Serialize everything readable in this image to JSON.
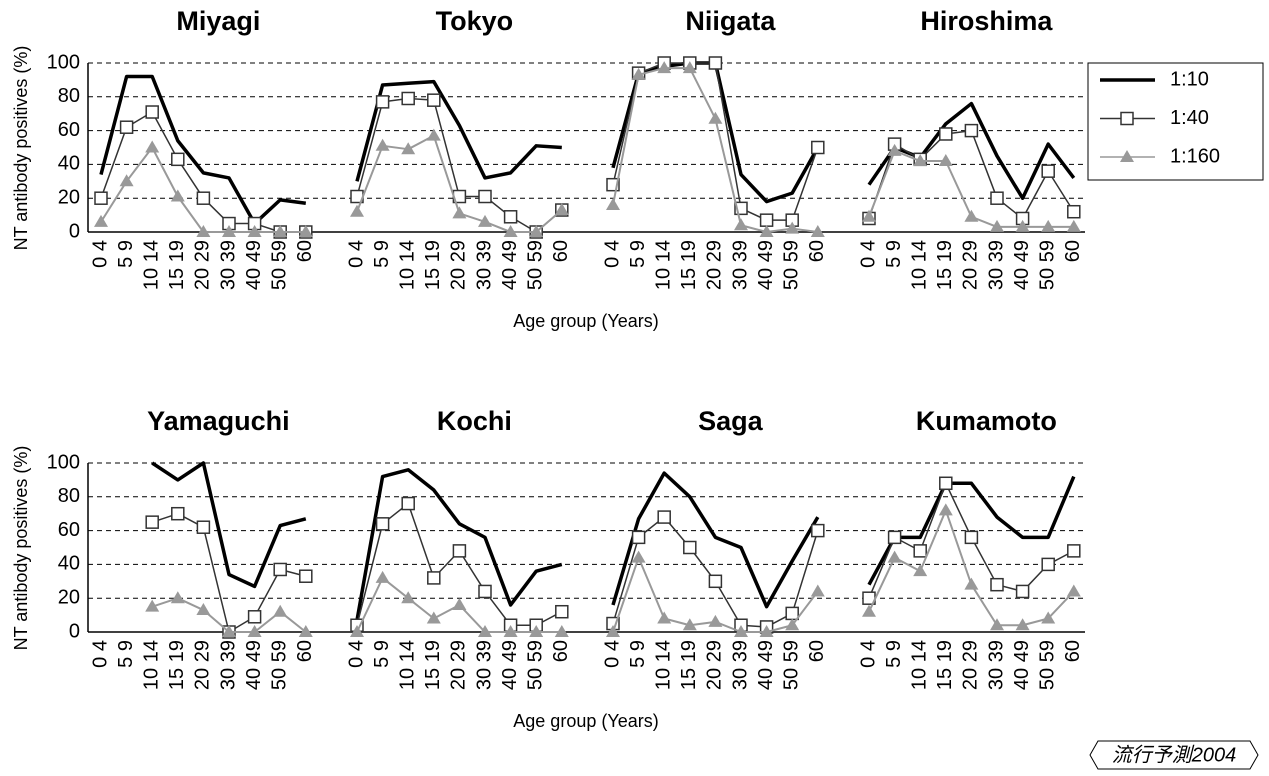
{
  "chart_data": [
    {
      "type": "line",
      "title": "Miyagi",
      "y_label": "NT antibody positives (%)",
      "x_label": "Age group (Years)",
      "ylim": [
        0,
        100
      ],
      "yticks": [
        0,
        20,
        40,
        60,
        80,
        100
      ],
      "grid": true,
      "categories": [
        "0 4",
        "5 9",
        "10 14",
        "15 19",
        "20 29",
        "30 39",
        "40 49",
        "50 59",
        "60"
      ],
      "series": [
        {
          "name": "1:10",
          "color": "#000000",
          "marker": "none",
          "values": [
            34,
            92,
            92,
            54,
            35,
            32,
            5,
            19,
            17
          ]
        },
        {
          "name": "1:40",
          "color": "#333333",
          "marker": "square",
          "values": [
            20,
            62,
            71,
            43,
            20,
            5,
            5,
            0,
            0
          ]
        },
        {
          "name": "1:160",
          "color": "#999999",
          "marker": "triangle",
          "values": [
            6,
            30,
            50,
            21,
            0,
            0,
            0,
            0,
            0
          ]
        }
      ]
    },
    {
      "type": "line",
      "title": "Tokyo",
      "categories": [
        "0 4",
        "5 9",
        "10 14",
        "15 19",
        "20 29",
        "30 39",
        "40 49",
        "50 59",
        "60"
      ],
      "series": [
        {
          "color": "#000000",
          "marker": "none",
          "values": [
            30,
            87,
            88,
            89,
            63,
            32,
            35,
            51,
            50
          ]
        },
        {
          "color": "#333333",
          "marker": "square",
          "values": [
            21,
            77,
            79,
            78,
            21,
            21,
            9,
            0,
            13
          ]
        },
        {
          "color": "#999999",
          "marker": "triangle",
          "values": [
            12,
            51,
            49,
            57,
            11,
            6,
            0,
            0,
            13
          ]
        }
      ]
    },
    {
      "type": "line",
      "title": "Niigata",
      "categories": [
        "0 4",
        "5 9",
        "10 14",
        "15 19",
        "20 29",
        "30 39",
        "40 49",
        "50 59",
        "60"
      ],
      "series": [
        {
          "color": "#000000",
          "marker": "none",
          "values": [
            38,
            94,
            98,
            100,
            100,
            34,
            18,
            23,
            50
          ]
        },
        {
          "color": "#333333",
          "marker": "square",
          "values": [
            28,
            94,
            100,
            100,
            100,
            14,
            7,
            7,
            50
          ]
        },
        {
          "color": "#999999",
          "marker": "triangle",
          "values": [
            16,
            93,
            97,
            97,
            67,
            4,
            0,
            2,
            0
          ]
        }
      ]
    },
    {
      "type": "line",
      "title": "Hiroshima",
      "categories": [
        "0 4",
        "5 9",
        "10 14",
        "15 19",
        "20 29",
        "30 39",
        "40 49",
        "50 59",
        "60"
      ],
      "series": [
        {
          "color": "#000000",
          "marker": "none",
          "values": [
            28,
            50,
            44,
            64,
            76,
            45,
            20,
            52,
            32
          ]
        },
        {
          "color": "#333333",
          "marker": "square",
          "values": [
            8,
            52,
            43,
            58,
            60,
            20,
            8,
            36,
            12
          ]
        },
        {
          "color": "#999999",
          "marker": "triangle",
          "values": [
            9,
            48,
            42,
            42,
            9,
            3,
            3,
            3,
            3
          ]
        }
      ]
    },
    {
      "type": "line",
      "title": "Yamaguchi",
      "y_label": "NT antibody positives (%)",
      "x_label": "Age group (Years)",
      "ylim": [
        0,
        100
      ],
      "yticks": [
        0,
        20,
        40,
        60,
        80,
        100
      ],
      "grid": true,
      "categories": [
        "0 4",
        "5 9",
        "10 14",
        "15 19",
        "20 29",
        "30 39",
        "40 49",
        "50 59",
        "60"
      ],
      "series": [
        {
          "color": "#000000",
          "marker": "none",
          "values": [
            null,
            null,
            100,
            90,
            100,
            34,
            27,
            63,
            67
          ]
        },
        {
          "color": "#333333",
          "marker": "square",
          "values": [
            null,
            null,
            65,
            70,
            62,
            0,
            9,
            37,
            33
          ]
        },
        {
          "color": "#999999",
          "marker": "triangle",
          "values": [
            null,
            null,
            15,
            20,
            13,
            0,
            0,
            12,
            0
          ]
        }
      ]
    },
    {
      "type": "line",
      "title": "Kochi",
      "categories": [
        "0 4",
        "5 9",
        "10 14",
        "15 19",
        "20 29",
        "30 39",
        "40 49",
        "50 59",
        "60"
      ],
      "series": [
        {
          "color": "#000000",
          "marker": "none",
          "values": [
            7,
            92,
            96,
            84,
            64,
            56,
            16,
            36,
            40
          ]
        },
        {
          "color": "#333333",
          "marker": "square",
          "values": [
            4,
            64,
            76,
            32,
            48,
            24,
            4,
            4,
            12
          ]
        },
        {
          "color": "#999999",
          "marker": "triangle",
          "values": [
            0,
            32,
            20,
            8,
            16,
            0,
            0,
            0,
            0
          ]
        }
      ]
    },
    {
      "type": "line",
      "title": "Saga",
      "categories": [
        "0 4",
        "5 9",
        "10 14",
        "15 19",
        "20 29",
        "30 39",
        "40 49",
        "50 59",
        "60"
      ],
      "series": [
        {
          "color": "#000000",
          "marker": "none",
          "values": [
            16,
            67,
            94,
            80,
            56,
            50,
            15,
            42,
            68
          ]
        },
        {
          "color": "#333333",
          "marker": "square",
          "values": [
            5,
            56,
            68,
            50,
            30,
            4,
            3,
            11,
            60
          ]
        },
        {
          "color": "#999999",
          "marker": "triangle",
          "values": [
            0,
            44,
            8,
            4,
            6,
            0,
            0,
            4,
            24
          ]
        }
      ]
    },
    {
      "type": "line",
      "title": "Kumamoto",
      "categories": [
        "0 4",
        "5 9",
        "10 14",
        "15 19",
        "20 29",
        "30 39",
        "40 49",
        "50 59",
        "60"
      ],
      "series": [
        {
          "color": "#000000",
          "marker": "none",
          "values": [
            28,
            56,
            56,
            88,
            88,
            68,
            56,
            56,
            92
          ]
        },
        {
          "color": "#333333",
          "marker": "square",
          "values": [
            20,
            56,
            48,
            88,
            56,
            28,
            24,
            40,
            48
          ]
        },
        {
          "color": "#999999",
          "marker": "triangle",
          "values": [
            12,
            44,
            36,
            72,
            28,
            4,
            4,
            8,
            24
          ]
        }
      ]
    }
  ],
  "watermark": "流行予測2004"
}
